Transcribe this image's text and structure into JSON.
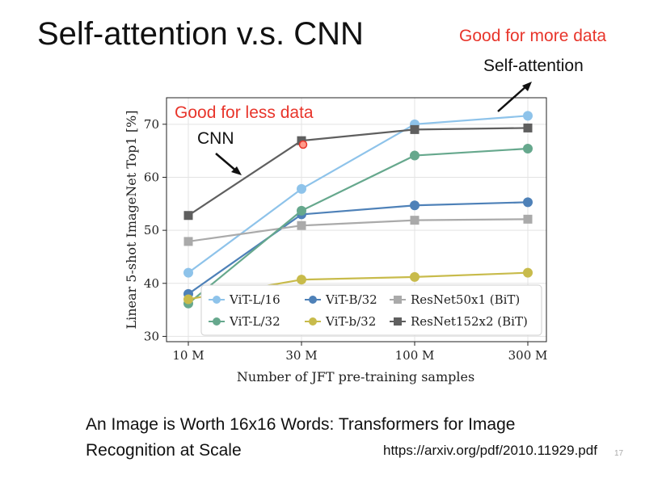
{
  "slide": {
    "title": "Self-attention v.s. CNN",
    "annotation_more": "Good for more data",
    "annotation_sa": "Self-attention",
    "annotation_less": "Good for less data",
    "annotation_cnn": "CNN",
    "paper_title_line1": "An Image is Worth 16x16 Words: Transformers for Image",
    "paper_title_line2": "Recognition at Scale",
    "url": "https://arxiv.org/pdf/2010.11929.pdf",
    "page_number": "17"
  },
  "chart_data": {
    "type": "line",
    "title": "",
    "xlabel": "Number of JFT pre-training samples",
    "ylabel": "Linear 5-shot ImageNet Top1 [%]",
    "categories": [
      "10 M",
      "30 M",
      "100 M",
      "300 M"
    ],
    "y_ticks": [
      "30",
      "40",
      "50",
      "60",
      "70"
    ],
    "ylim": [
      29,
      75
    ],
    "grid": true,
    "legend_position": "lower-right",
    "series": [
      {
        "name": "ViT-L/16",
        "color": "#8ec3ea",
        "marker": "circle",
        "values": [
          42.0,
          57.8,
          70.0,
          71.6
        ]
      },
      {
        "name": "ViT-B/32",
        "color": "#4e81b8",
        "marker": "circle",
        "values": [
          38.0,
          53.0,
          54.7,
          55.3
        ]
      },
      {
        "name": "ResNet50x1 (BiT)",
        "color": "#aaaaaa",
        "marker": "square",
        "values": [
          47.9,
          50.9,
          51.9,
          52.1
        ]
      },
      {
        "name": "ViT-L/32",
        "color": "#66a88d",
        "marker": "circle",
        "values": [
          36.2,
          53.7,
          64.1,
          65.4
        ]
      },
      {
        "name": "ViT-b/32",
        "color": "#c8bb4b",
        "marker": "circle",
        "values": [
          37.0,
          40.7,
          41.2,
          42.0
        ]
      },
      {
        "name": "ResNet152x2 (BiT)",
        "color": "#5f5f5f",
        "marker": "square",
        "values": [
          52.8,
          66.9,
          69.0,
          69.3
        ]
      }
    ]
  }
}
